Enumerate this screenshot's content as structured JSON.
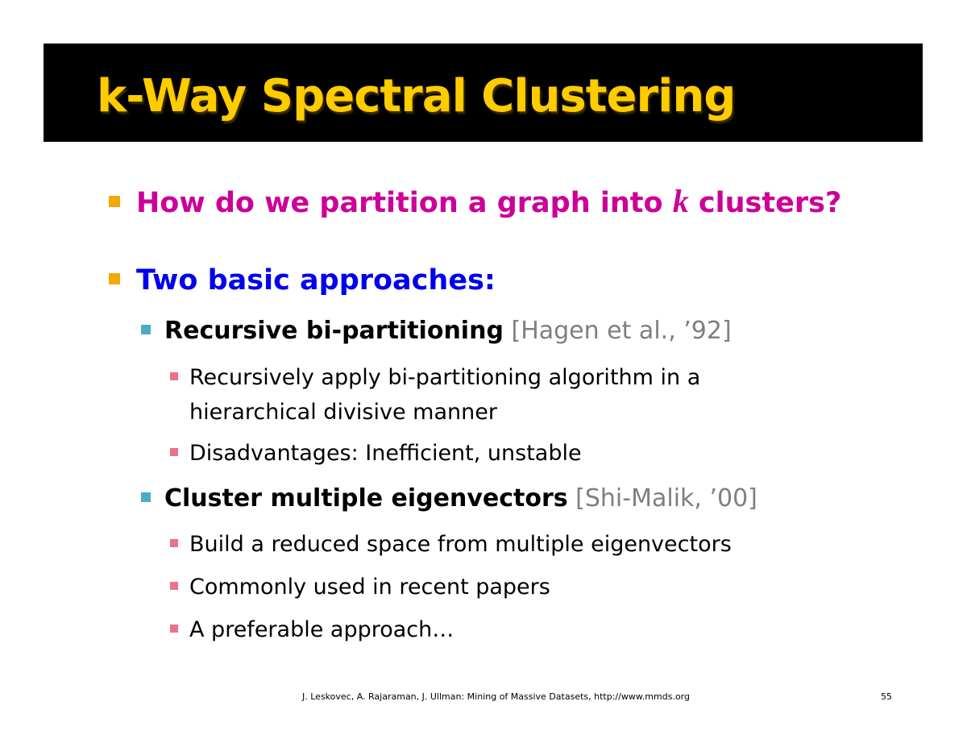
{
  "slide": {
    "title": "k-Way Spectral Clustering",
    "bullets": [
      {
        "text_before": "How do we partition a graph into ",
        "variable": "k",
        "text_after": " clusters?"
      },
      {
        "text": "Two basic approaches:",
        "children": [
          {
            "label": "Recursive bi-partitioning",
            "citation": "[Hagen et al., ’92]",
            "children": [
              {
                "line1": "Recursively apply bi-partitioning algorithm in a",
                "line2": "hierarchical divisive manner"
              },
              {
                "text": "Disadvantages: Inefficient, unstable"
              }
            ]
          },
          {
            "label": "Cluster multiple eigenvectors",
            "citation": "[Shi-Malik, ’00]",
            "children": [
              {
                "text": "Build a reduced space from multiple eigenvectors"
              },
              {
                "text": "Commonly used in recent papers"
              },
              {
                "text": "A preferable approach…"
              }
            ]
          }
        ]
      }
    ]
  },
  "footer": {
    "credit": "J. Leskovec, A. Rajaraman, J. Ullman: Mining of Massive Datasets, http://www.mmds.org",
    "page_number": "55"
  },
  "colors": {
    "title_bar": "#000000",
    "title_text": "#ffcc00",
    "level1_marker": "#f5a800",
    "question_text": "#cc0099",
    "approaches_text": "#0000ee",
    "level2_marker": "#4bacc6",
    "citation_text": "#7f7f7f",
    "level3_marker": "#e8738a"
  }
}
